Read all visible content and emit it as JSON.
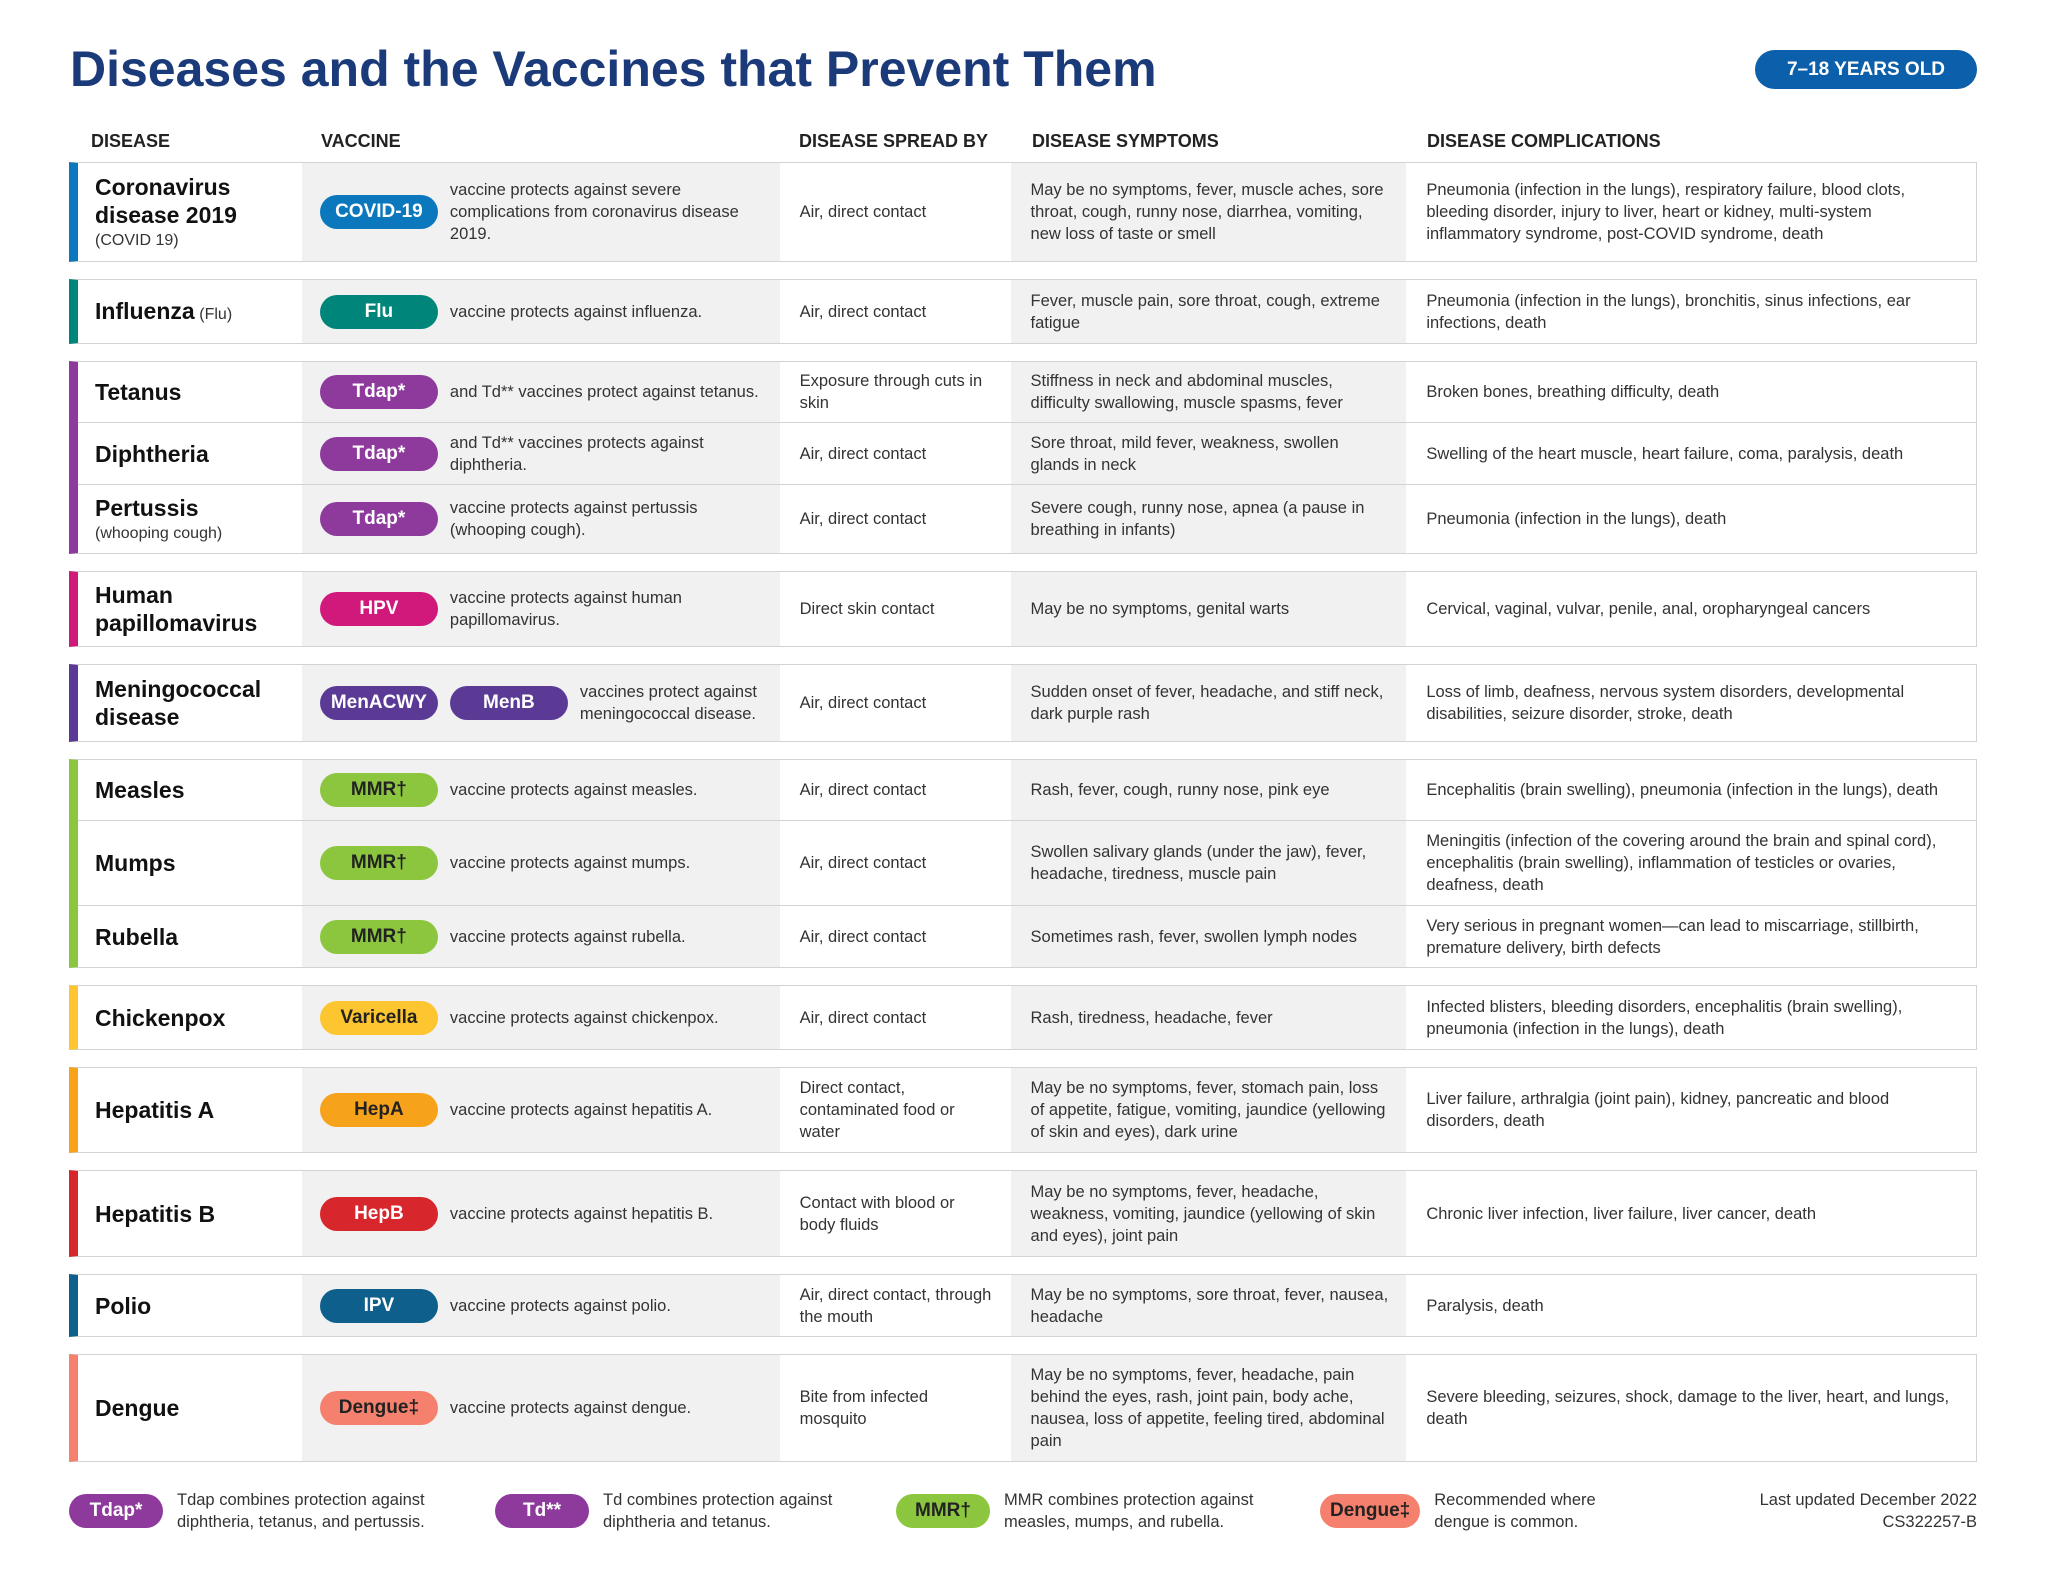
{
  "header": {
    "title": "Diseases and the Vaccines that Prevent Them",
    "age_badge": "7–18 YEARS OLD"
  },
  "table": {
    "columns": [
      "DISEASE",
      "VACCINE",
      "DISEASE SPREAD BY",
      "DISEASE SYMPTOMS",
      "DISEASE COMPLICATIONS"
    ],
    "groups": [
      {
        "color": "#0b78bd",
        "rows": [
          {
            "disease": "Coronavirus disease 2019",
            "note": "(COVID 19)",
            "vaccines": [
              "COVID-19"
            ],
            "vaccine_text": "vaccine protects against severe complications from coronavirus disease 2019.",
            "spread": "Air, direct contact",
            "symptoms": "May be no symptoms, fever, muscle aches, sore throat, cough, runny nose, diarrhea, vomiting, new loss of taste or smell",
            "complications": "Pneumonia (infection in the lungs), respiratory failure, blood clots, bleeding disorder, injury to liver, heart or kidney, multi-system inflammatory syndrome, post-COVID syndrome, death"
          }
        ]
      },
      {
        "color": "#00857a",
        "rows": [
          {
            "disease": "Influenza",
            "note": "(Flu)",
            "vaccines": [
              "Flu"
            ],
            "vaccine_text": "vaccine protects against influenza.",
            "spread": "Air, direct contact",
            "symptoms": "Fever, muscle pain, sore throat, cough, extreme fatigue",
            "complications": "Pneumonia (infection in the lungs), bronchitis, sinus infections, ear infections, death"
          }
        ]
      },
      {
        "color": "#8e3a9d",
        "rows": [
          {
            "disease": "Tetanus",
            "vaccines": [
              "Tdap*"
            ],
            "vaccine_text": "and Td** vaccines protect against tetanus.",
            "spread": "Exposure through cuts in skin",
            "symptoms": "Stiffness in neck and abdominal muscles, difficulty swallowing, muscle spasms, fever",
            "complications": "Broken bones, breathing difficulty, death"
          },
          {
            "disease": "Diphtheria",
            "vaccines": [
              "Tdap*"
            ],
            "vaccine_text": "and Td** vaccines protects against diphtheria.",
            "spread": "Air, direct contact",
            "symptoms": "Sore throat, mild fever, weakness, swollen glands in neck",
            "complications": "Swelling of the heart muscle, heart failure, coma, paralysis, death"
          },
          {
            "disease": "Pertussis",
            "note": "(whooping cough)",
            "vaccines": [
              "Tdap*"
            ],
            "vaccine_text": "vaccine protects against pertussis (whooping cough).",
            "spread": "Air, direct contact",
            "symptoms": "Severe cough, runny nose, apnea (a pause in breathing in infants)",
            "complications": "Pneumonia (infection in the lungs), death"
          }
        ]
      },
      {
        "color": "#d0197a",
        "rows": [
          {
            "disease": "Human papillomavirus",
            "vaccines": [
              "HPV"
            ],
            "vaccine_text": "vaccine protects against human papillomavirus.",
            "spread": "Direct skin contact",
            "symptoms": "May be no symptoms, genital warts",
            "complications": "Cervical, vaginal, vulvar, penile, anal, oropharyngeal cancers"
          }
        ]
      },
      {
        "color": "#5b3a96",
        "rows": [
          {
            "disease": "Meningococcal disease",
            "vaccines": [
              "MenACWY",
              "MenB"
            ],
            "vaccine_text": "vaccines protect against meningococcal disease.",
            "spread": "Air, direct contact",
            "symptoms": "Sudden onset of fever, headache, and stiff neck, dark purple rash",
            "complications": "Loss of limb, deafness, nervous system disorders, developmental disabilities, seizure disorder, stroke, death"
          }
        ]
      },
      {
        "color": "#8cc63f",
        "rows": [
          {
            "disease": "Measles",
            "vaccines": [
              "MMR†"
            ],
            "vaccine_text": "vaccine protects against measles.",
            "spread": "Air, direct contact",
            "symptoms": "Rash, fever, cough, runny nose, pink eye",
            "complications": "Encephalitis (brain swelling), pneumonia (infection in the lungs), death"
          },
          {
            "disease": "Mumps",
            "vaccines": [
              "MMR†"
            ],
            "vaccine_text": "vaccine protects against mumps.",
            "spread": "Air, direct contact",
            "symptoms": "Swollen salivary glands (under the jaw), fever, headache, tiredness, muscle pain",
            "complications": "Meningitis (infection of the covering around the brain and spinal cord), encephalitis (brain swelling), inflammation of testicles or ovaries, deafness, death"
          },
          {
            "disease": "Rubella",
            "vaccines": [
              "MMR†"
            ],
            "vaccine_text": "vaccine protects against rubella.",
            "spread": "Air, direct contact",
            "symptoms": "Sometimes rash, fever, swollen lymph nodes",
            "complications": "Very serious in pregnant women—can lead to miscarriage, stillbirth, premature delivery, birth defects"
          }
        ]
      },
      {
        "color": "#fdc52f",
        "rows": [
          {
            "disease": "Chickenpox",
            "vaccines": [
              "Varicella"
            ],
            "vaccine_text": "vaccine protects against chickenpox.",
            "spread": "Air, direct contact",
            "symptoms": "Rash, tiredness, headache, fever",
            "complications": "Infected blisters, bleeding disorders, encephalitis (brain swelling), pneumonia (infection in the lungs), death"
          }
        ]
      },
      {
        "color": "#f7a21b",
        "rows": [
          {
            "disease": "Hepatitis A",
            "vaccines": [
              "HepA"
            ],
            "vaccine_text": "vaccine protects against hepatitis A.",
            "spread": "Direct contact, contaminated food or water",
            "symptoms": "May be no symptoms, fever, stomach pain, loss of appetite, fatigue, vomiting, jaundice (yellowing of skin and eyes), dark urine",
            "complications": "Liver failure, arthralgia (joint pain), kidney, pancreatic and blood disorders, death"
          }
        ]
      },
      {
        "color": "#d7262c",
        "rows": [
          {
            "disease": "Hepatitis B",
            "vaccines": [
              "HepB"
            ],
            "vaccine_text": "vaccine protects against hepatitis B.",
            "spread": "Contact with blood or body fluids",
            "symptoms": "May be no symptoms, fever, headache, weakness, vomiting, jaundice (yellowing of skin and eyes), joint pain",
            "complications": "Chronic liver infection, liver failure, liver cancer, death"
          }
        ]
      },
      {
        "color": "#0e5f8c",
        "rows": [
          {
            "disease": "Polio",
            "vaccines": [
              "IPV"
            ],
            "vaccine_text": "vaccine protects against polio.",
            "spread": "Air, direct contact, through the mouth",
            "symptoms": "May be no symptoms, sore throat, fever, nausea, headache",
            "complications": "Paralysis, death"
          }
        ]
      },
      {
        "color": "#f4806d",
        "rows": [
          {
            "disease": "Dengue",
            "vaccines": [
              "Dengue‡"
            ],
            "vaccine_text": "vaccine protects against dengue.",
            "spread": "Bite from infected mosquito",
            "symptoms": "May be no symptoms, fever, headache, pain behind the eyes, rash, joint pain, body ache, nausea, loss of appetite, feeling tired, abdominal pain",
            "complications": "Severe bleeding, seizures, shock, damage to the liver, heart, and lungs, death"
          }
        ]
      }
    ]
  },
  "footnotes": [
    {
      "badge": "Tdap*",
      "color": "#8e3a9d",
      "text": "Tdap combines protection against diphtheria, tetanus, and pertussis."
    },
    {
      "badge": "Td**",
      "color": "#8e3a9d",
      "text": "Td combines protection against diphtheria and tetanus."
    },
    {
      "badge": "MMR†",
      "color": "#8cc63f",
      "text": "MMR combines protection against measles, mumps, and rubella."
    },
    {
      "badge": "Dengue‡",
      "color": "#f4806d",
      "text": "Recommended where dengue is common."
    }
  ],
  "footer": {
    "updated": "Last updated December 2022",
    "code": "CS322257-B"
  }
}
